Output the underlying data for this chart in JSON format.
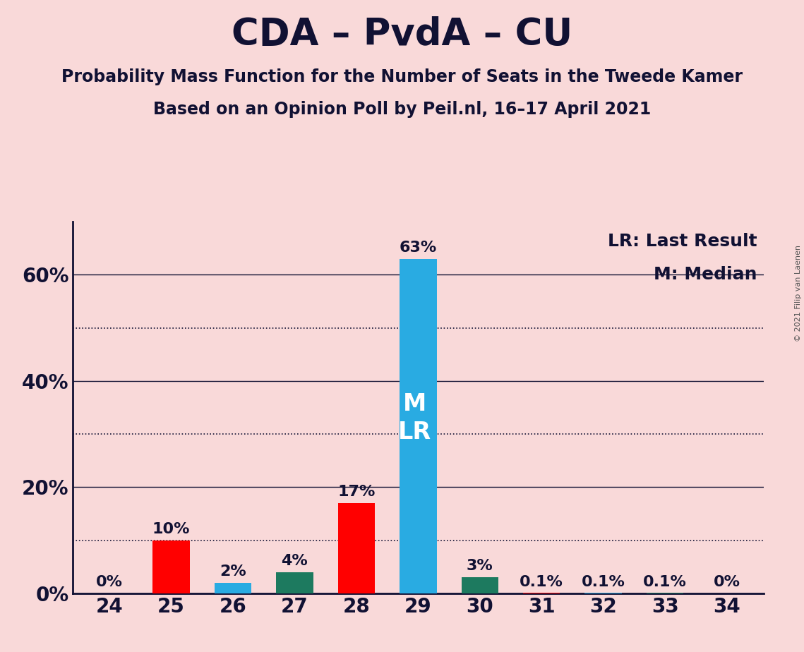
{
  "title": "CDA – PvdA – CU",
  "subtitle1": "Probability Mass Function for the Number of Seats in the Tweede Kamer",
  "subtitle2": "Based on an Opinion Poll by Peil.nl, 16–17 April 2021",
  "copyright": "© 2021 Filip van Laenen",
  "legend_lr": "LR: Last Result",
  "legend_m": "M: Median",
  "categories": [
    24,
    25,
    26,
    27,
    28,
    29,
    30,
    31,
    32,
    33,
    34
  ],
  "values": [
    0.0,
    10.0,
    2.0,
    4.0,
    17.0,
    63.0,
    3.0,
    0.1,
    0.1,
    0.1,
    0.0
  ],
  "colors": [
    "#FF0000",
    "#FF0000",
    "#29ABE2",
    "#1D7A5F",
    "#FF0000",
    "#29ABE2",
    "#1D7A5F",
    "#FF0000",
    "#29ABE2",
    "#1D7A5F",
    "#FF0000"
  ],
  "labels": [
    "0%",
    "10%",
    "2%",
    "4%",
    "17%",
    "63%",
    "3%",
    "0.1%",
    "0.1%",
    "0.1%",
    "0%"
  ],
  "median_bar": 29,
  "lr_bar": 29,
  "bar_width": 0.6,
  "ylim": [
    0,
    70
  ],
  "solid_lines": [
    0,
    20,
    40,
    60
  ],
  "dotted_lines": [
    10,
    30,
    50
  ],
  "ytick_positions": [
    0,
    20,
    40,
    60
  ],
  "ytick_labels": [
    "0%",
    "20%",
    "40%",
    "60%"
  ],
  "background_color": "#F9D9D9",
  "title_fontsize": 38,
  "subtitle_fontsize": 17,
  "label_fontsize": 16,
  "axis_fontsize": 20,
  "legend_fontsize": 18,
  "ml_fontsize": 24
}
